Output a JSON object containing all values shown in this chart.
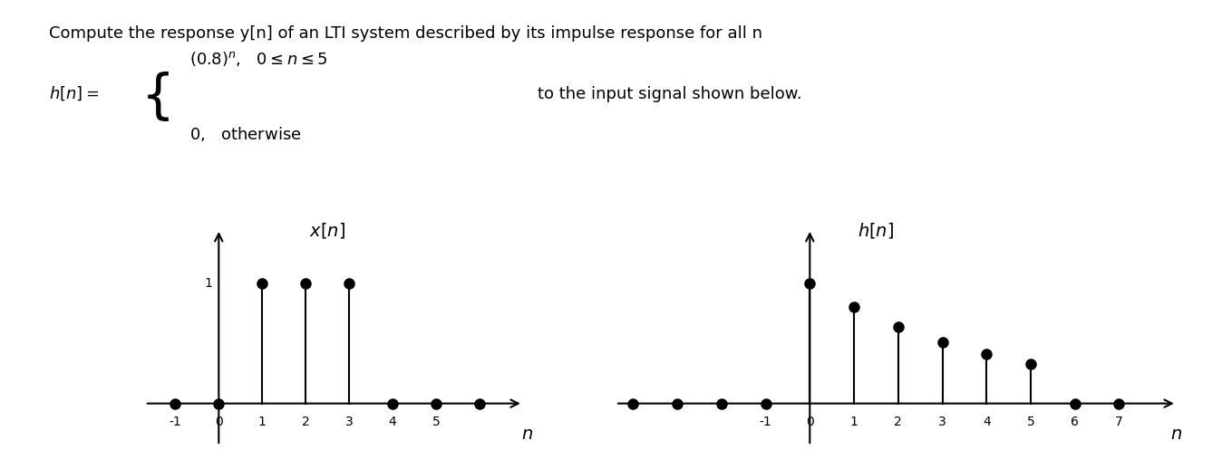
{
  "title_line1": "Compute the response y[n] of an LTI system described by its impulse response for all n",
  "piecewise_line1": "$(0.8)^n$,   $0 \\leq n \\leq 5$",
  "piecewise_hn": "$h[n] =$",
  "piecewise_line2": "$0$,   otherwise",
  "piecewise_right": "to the input signal shown below.",
  "plot1_label": "$x[n]$",
  "plot1_xlabel": "$n$",
  "plot1_stem_n": [
    1,
    2,
    3
  ],
  "plot1_stem_v": [
    1.0,
    1.0,
    1.0
  ],
  "plot1_zero_n": [
    -1,
    0,
    4,
    5,
    6
  ],
  "plot1_xticks": [
    -1,
    0,
    1,
    2,
    3,
    4,
    5
  ],
  "plot1_xlim": [
    -1.8,
    7.2
  ],
  "plot1_ylim": [
    -0.35,
    1.6
  ],
  "plot1_yval_label": "1",
  "plot2_label": "$h[n]$",
  "plot2_xlabel": "$n$",
  "plot2_stem_n": [
    0,
    1,
    2,
    3,
    4,
    5
  ],
  "plot2_stem_v": [
    1.0,
    0.8,
    0.64,
    0.512,
    0.4096,
    0.32768
  ],
  "plot2_zero_n": [
    -4,
    -3,
    -2,
    -1,
    6,
    7
  ],
  "plot2_xticks": [
    -1,
    0,
    1,
    2,
    3,
    4,
    5,
    6,
    7
  ],
  "plot2_xlim": [
    -4.5,
    8.5
  ],
  "plot2_ylim": [
    -0.35,
    1.6
  ],
  "background_color": "#ffffff",
  "stem_color": "#000000",
  "marker_color": "#000000",
  "font_color": "#000000",
  "marker_size": 8,
  "text_fontsize": 13,
  "label_fontsize": 14
}
